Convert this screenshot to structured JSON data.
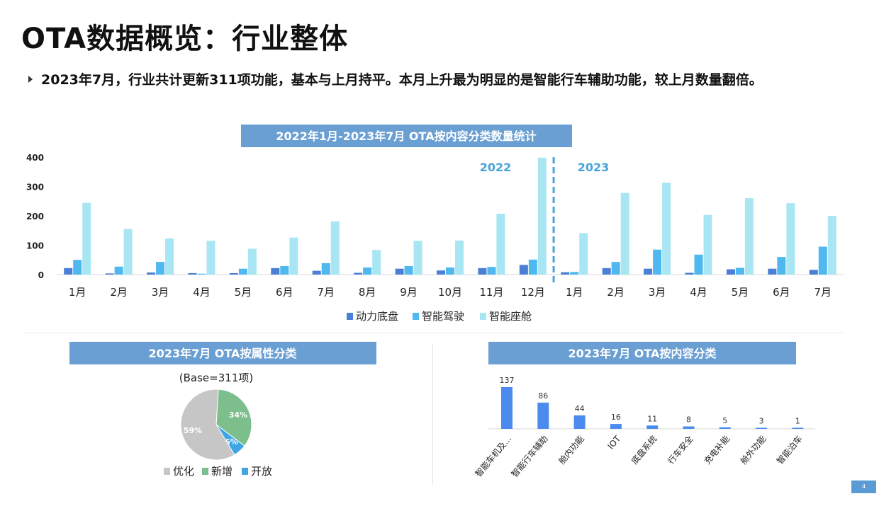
{
  "page": {
    "title": "OTA数据概览：行业整体",
    "summary": "2023年7月，行业共计更新311项功能，基本与上月持平。本月上升最为明显的是智能行车辅助功能，较上月数量翻倍。",
    "page_number": "4"
  },
  "colors": {
    "powertrain": "#4a7fd6",
    "driving": "#4fb8ee",
    "cockpit": "#a8e6f3",
    "header_bg": "#6a9fd3",
    "year_label": "#4aa3d8",
    "pie_optimize": "#c6c6c6",
    "pie_new": "#7cbf8c",
    "pie_open": "#3fa6e6",
    "content_bar": "#4a8bed"
  },
  "chart_data": [
    {
      "type": "bar",
      "title": "2022年1月-2023年7月 OTA按内容分类数量统计",
      "categories": [
        "1月",
        "2月",
        "3月",
        "4月",
        "5月",
        "6月",
        "7月",
        "8月",
        "9月",
        "10月",
        "11月",
        "12月",
        "1月",
        "2月",
        "3月",
        "4月",
        "5月",
        "6月",
        "7月"
      ],
      "year_labels": [
        "2022",
        "2023"
      ],
      "series": [
        {
          "name": "动力底盘",
          "values": [
            22,
            4,
            7,
            5,
            5,
            22,
            13,
            6,
            20,
            14,
            22,
            33,
            8,
            22,
            20,
            6,
            18,
            20,
            16
          ]
        },
        {
          "name": "智能驾驶",
          "values": [
            50,
            27,
            43,
            3,
            20,
            29,
            39,
            24,
            29,
            24,
            26,
            51,
            9,
            43,
            85,
            68,
            23,
            60,
            95
          ]
        },
        {
          "name": "智能座舱",
          "values": [
            244,
            155,
            123,
            115,
            88,
            126,
            181,
            84,
            115,
            116,
            207,
            398,
            141,
            278,
            313,
            203,
            260,
            243,
            200
          ]
        }
      ],
      "yticks": [
        0,
        100,
        200,
        300,
        400
      ],
      "ylim": [
        0,
        400
      ],
      "legend": "bottom"
    },
    {
      "type": "pie",
      "title": "2023年7月 OTA按属性分类",
      "subtitle": "(Base=311项)",
      "slices": [
        {
          "label": "优化",
          "value": 59,
          "text": "59%"
        },
        {
          "label": "新增",
          "value": 34,
          "text": "34%"
        },
        {
          "label": "开放",
          "value": 6,
          "text": "6%"
        }
      ],
      "legend": "bottom"
    },
    {
      "type": "bar",
      "title": "2023年7月 OTA按内容分类",
      "categories": [
        "智能车机及...",
        "智能行车辅助",
        "舱内功能",
        "IOT",
        "底盘系统",
        "行车安全",
        "充电补能",
        "舱外功能",
        "智能泊车"
      ],
      "values": [
        137,
        86,
        44,
        16,
        11,
        8,
        5,
        3,
        1
      ]
    }
  ]
}
